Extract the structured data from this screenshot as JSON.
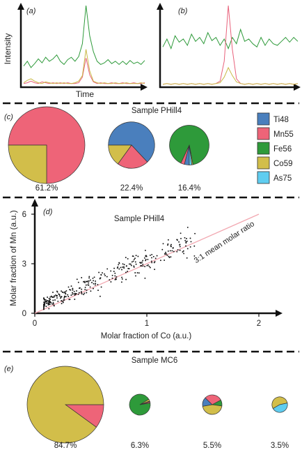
{
  "chart_data": [
    {
      "panel": "(a)",
      "type": "line",
      "ylabel": "Intensity",
      "xlabel": "Time",
      "series": [
        {
          "color": "#2e9a3a",
          "values": [
            0.24,
            0.3,
            0.22,
            0.27,
            0.33,
            0.28,
            0.35,
            0.3,
            0.33,
            0.38,
            0.3,
            0.26,
            0.32,
            0.35,
            0.3,
            0.36,
            0.52,
            1.0,
            0.62,
            0.42,
            0.3,
            0.26,
            0.28,
            0.32,
            0.27,
            0.3,
            0.26,
            0.3,
            0.26,
            0.31,
            0.27,
            0.29,
            0.26,
            0.31
          ]
        },
        {
          "color": "#e8607a",
          "values": [
            0.02,
            0.03,
            0.05,
            0.03,
            0.02,
            0.04,
            0.03,
            0.02,
            0.03,
            0.02,
            0.03,
            0.02,
            0.03,
            0.02,
            0.02,
            0.03,
            0.1,
            0.34,
            0.13,
            0.04,
            0.02,
            0.03,
            0.02,
            0.02,
            0.03,
            0.02,
            0.02,
            0.03,
            0.02,
            0.02,
            0.03,
            0.02,
            0.02,
            0.03
          ]
        },
        {
          "color": "#c9b844",
          "values": [
            0.03,
            0.06,
            0.08,
            0.05,
            0.03,
            0.02,
            0.04,
            0.03,
            0.02,
            0.03,
            0.02,
            0.03,
            0.02,
            0.02,
            0.03,
            0.05,
            0.12,
            0.45,
            0.18,
            0.05,
            0.03,
            0.02,
            0.03,
            0.02,
            0.02,
            0.03,
            0.02,
            0.02,
            0.03,
            0.02,
            0.02,
            0.02,
            0.03,
            0.02
          ]
        }
      ]
    },
    {
      "panel": "(b)",
      "type": "line",
      "series": [
        {
          "color": "#2e9a3a",
          "values": [
            0.48,
            0.58,
            0.46,
            0.62,
            0.54,
            0.58,
            0.5,
            0.64,
            0.55,
            0.6,
            0.52,
            0.66,
            0.56,
            0.6,
            0.5,
            0.58,
            0.46,
            0.6,
            0.52,
            0.7,
            0.55,
            0.58,
            0.52,
            0.48,
            0.6,
            0.5,
            0.58,
            0.52,
            0.5,
            0.55,
            0.6,
            0.54,
            0.6,
            0.55
          ]
        },
        {
          "color": "#e8607a",
          "values": [
            0.01,
            0.02,
            0.01,
            0.02,
            0.01,
            0.02,
            0.01,
            0.02,
            0.01,
            0.02,
            0.01,
            0.02,
            0.01,
            0.02,
            0.05,
            0.3,
            1.0,
            0.45,
            0.08,
            0.02,
            0.01,
            0.02,
            0.01,
            0.02,
            0.01,
            0.02,
            0.01,
            0.02,
            0.01,
            0.02,
            0.01,
            0.02,
            0.01,
            0.02
          ]
        },
        {
          "color": "#c9b844",
          "values": [
            0.01,
            0.02,
            0.01,
            0.02,
            0.01,
            0.02,
            0.01,
            0.02,
            0.01,
            0.02,
            0.01,
            0.02,
            0.01,
            0.02,
            0.03,
            0.1,
            0.22,
            0.12,
            0.04,
            0.02,
            0.01,
            0.02,
            0.01,
            0.02,
            0.01,
            0.02,
            0.01,
            0.02,
            0.01,
            0.02,
            0.01,
            0.02,
            0.01,
            0.02
          ]
        }
      ]
    },
    {
      "panel": "(c)",
      "type": "pie",
      "title": "Sample PHill4",
      "legend": [
        "Ti48",
        "Mn55",
        "Fe56",
        "Co59",
        "As75"
      ],
      "legend_colors": [
        "#4a7fbd",
        "#ee6478",
        "#2e9a3a",
        "#d2be4a",
        "#5fcdf0"
      ],
      "pies": [
        {
          "label": "61.2%",
          "weight": 61.2,
          "slices": [
            0,
            75,
            0,
            25,
            0
          ]
        },
        {
          "label": "22.4%",
          "weight": 22.4,
          "slices": [
            63,
            22,
            0,
            15,
            0
          ]
        },
        {
          "label": "16.4%",
          "weight": 16.4,
          "slices": [
            4,
            3,
            90,
            1,
            2
          ]
        }
      ]
    },
    {
      "panel": "(d)",
      "type": "scatter",
      "title": "Sample PHill4",
      "xlabel": "Molar fraction of Co (a.u.)",
      "ylabel": "Molar fraction of Mn (a.u.)",
      "xlim": [
        0,
        2
      ],
      "ylim": [
        0,
        6
      ],
      "xticks": [
        "0",
        "1",
        "2"
      ],
      "yticks": [
        "0",
        "3",
        "6"
      ],
      "annotation": "3:1 mean molar ratio",
      "ratio": 3,
      "n_points": 330
    },
    {
      "panel": "(e)",
      "type": "pie",
      "title": "Sample MC6",
      "pies": [
        {
          "label": "84.7%",
          "weight": 84.7,
          "slices": [
            0,
            10,
            0,
            90,
            0
          ]
        },
        {
          "label": "6.3%",
          "weight": 6.3,
          "slices": [
            1,
            2,
            94,
            3,
            0
          ]
        },
        {
          "label": "5.5%",
          "weight": 5.5,
          "slices": [
            15,
            30,
            10,
            45,
            0
          ]
        },
        {
          "label": "3.5%",
          "weight": 3.5,
          "slices": [
            0,
            0,
            0,
            55,
            45
          ]
        }
      ]
    }
  ]
}
